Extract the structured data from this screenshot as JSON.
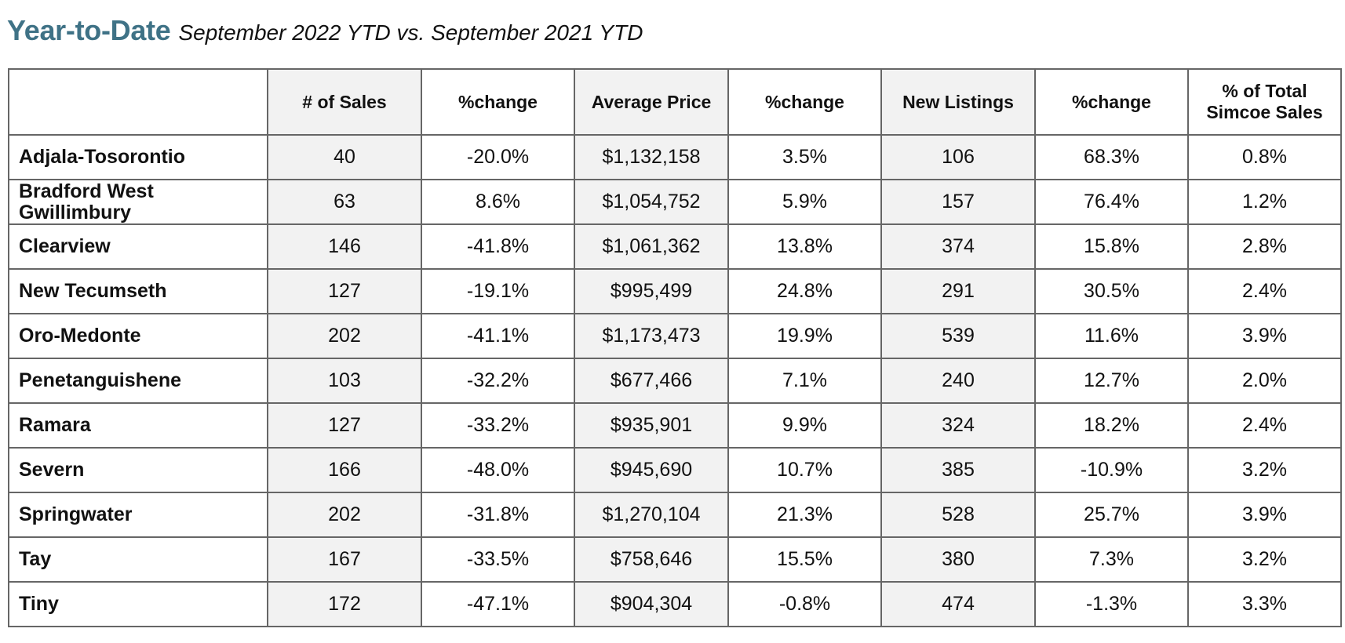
{
  "header": {
    "title": "Year-to-Date",
    "subtitle": "September 2022 YTD vs. September 2021 YTD"
  },
  "table": {
    "columns": [
      "",
      "# of Sales",
      "%change",
      "Average Price",
      "%change",
      "New Listings",
      "%change",
      "% of Total Simcoe Sales"
    ],
    "column_lines": {
      "total_simcoe_line1": "% of Total",
      "total_simcoe_line2": "Simcoe Sales"
    },
    "rows": [
      {
        "name": "Adjala-Tosorontio",
        "sales": "40",
        "sales_change": "-20.0%",
        "avg_price": "$1,132,158",
        "price_change": "3.5%",
        "new_listings": "106",
        "listings_change": "68.3%",
        "pct_total": "0.8%"
      },
      {
        "name": "Bradford West Gwillimbury",
        "name_line1": "Bradford West",
        "name_line2": "Gwillimbury",
        "sales": "63",
        "sales_change": "8.6%",
        "avg_price": "$1,054,752",
        "price_change": "5.9%",
        "new_listings": "157",
        "listings_change": "76.4%",
        "pct_total": "1.2%"
      },
      {
        "name": "Clearview",
        "sales": "146",
        "sales_change": "-41.8%",
        "avg_price": "$1,061,362",
        "price_change": "13.8%",
        "new_listings": "374",
        "listings_change": "15.8%",
        "pct_total": "2.8%"
      },
      {
        "name": "New Tecumseth",
        "sales": "127",
        "sales_change": "-19.1%",
        "avg_price": "$995,499",
        "price_change": "24.8%",
        "new_listings": "291",
        "listings_change": "30.5%",
        "pct_total": "2.4%"
      },
      {
        "name": "Oro-Medonte",
        "sales": "202",
        "sales_change": "-41.1%",
        "avg_price": "$1,173,473",
        "price_change": "19.9%",
        "new_listings": "539",
        "listings_change": "11.6%",
        "pct_total": "3.9%"
      },
      {
        "name": "Penetanguishene",
        "sales": "103",
        "sales_change": "-32.2%",
        "avg_price": "$677,466",
        "price_change": "7.1%",
        "new_listings": "240",
        "listings_change": "12.7%",
        "pct_total": "2.0%"
      },
      {
        "name": "Ramara",
        "sales": "127",
        "sales_change": "-33.2%",
        "avg_price": "$935,901",
        "price_change": "9.9%",
        "new_listings": "324",
        "listings_change": "18.2%",
        "pct_total": "2.4%"
      },
      {
        "name": "Severn",
        "sales": "166",
        "sales_change": "-48.0%",
        "avg_price": "$945,690",
        "price_change": "10.7%",
        "new_listings": "385",
        "listings_change": "-10.9%",
        "pct_total": "3.2%"
      },
      {
        "name": "Springwater",
        "sales": "202",
        "sales_change": "-31.8%",
        "avg_price": "$1,270,104",
        "price_change": "21.3%",
        "new_listings": "528",
        "listings_change": "25.7%",
        "pct_total": "3.9%"
      },
      {
        "name": "Tay",
        "sales": "167",
        "sales_change": "-33.5%",
        "avg_price": "$758,646",
        "price_change": "15.5%",
        "new_listings": "380",
        "listings_change": "7.3%",
        "pct_total": "3.2%"
      },
      {
        "name": "Tiny",
        "sales": "172",
        "sales_change": "-47.1%",
        "avg_price": "$904,304",
        "price_change": "-0.8%",
        "new_listings": "474",
        "listings_change": "-1.3%",
        "pct_total": "3.3%"
      }
    ]
  },
  "colors": {
    "title": "#3f7286",
    "shaded_column": "#f2f2f2",
    "border": "#666666"
  }
}
